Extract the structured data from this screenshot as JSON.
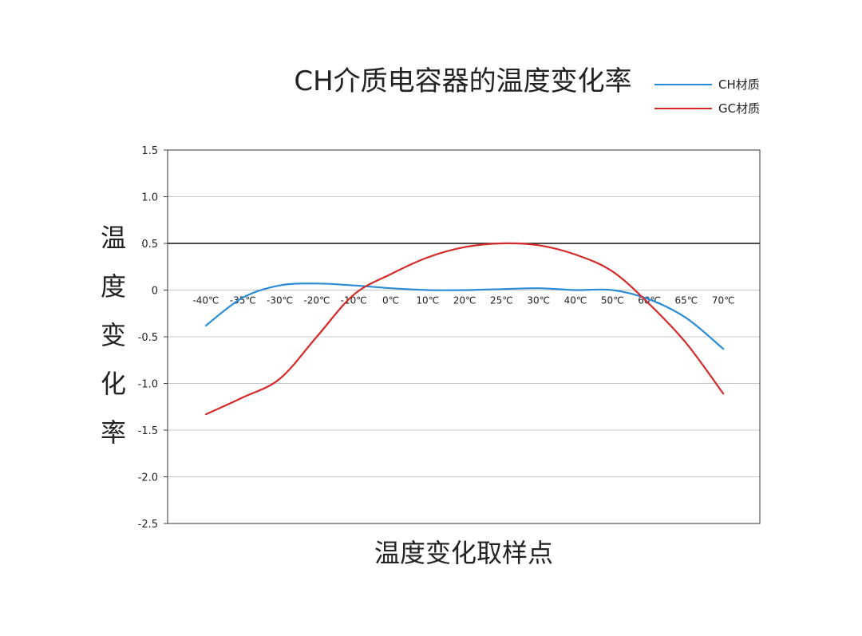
{
  "chart_data": {
    "type": "line",
    "title": "CH介质电容器的温度变化率",
    "xlabel": "温度变化取样点",
    "ylabel": "温度变化率",
    "categories": [
      "-40℃",
      "-35℃",
      "-30℃",
      "-20℃",
      "-10℃",
      "0℃",
      "10℃",
      "20℃",
      "25℃",
      "30℃",
      "40℃",
      "50℃",
      "60℃",
      "65℃",
      "70℃"
    ],
    "series": [
      {
        "name": "CH材质",
        "color": "#2b8cd6",
        "values": [
          -0.38,
          -0.08,
          0.05,
          0.07,
          0.05,
          0.02,
          0.0,
          0.0,
          0.01,
          0.02,
          0.0,
          0.0,
          -0.1,
          -0.3,
          -0.63
        ]
      },
      {
        "name": "GC材质",
        "color": "#d42a2a",
        "values": [
          -1.33,
          -1.15,
          -0.95,
          -0.5,
          -0.05,
          0.17,
          0.35,
          0.46,
          0.5,
          0.48,
          0.38,
          0.2,
          -0.15,
          -0.57,
          -1.11
        ]
      }
    ],
    "ylim": [
      -2.5,
      1.5
    ],
    "yticks": [
      "1.5",
      "1.0",
      "0.5",
      "0",
      "-0.5",
      "-1.0",
      "-1.5",
      "-2.0",
      "-2.5"
    ],
    "ytick_values": [
      1.5,
      1.0,
      0.5,
      0,
      -0.5,
      -1.0,
      -1.5,
      -2.0,
      -2.5
    ],
    "reference_line": 0.5,
    "grid": true,
    "legend_position": "top-right"
  }
}
